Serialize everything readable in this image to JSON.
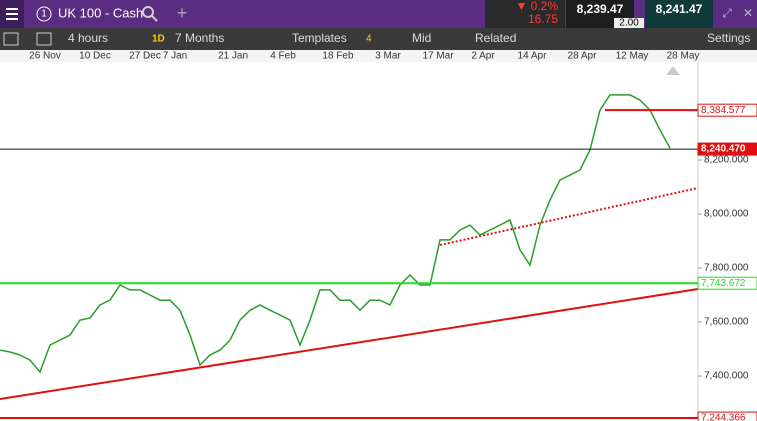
{
  "topbar": {
    "instrument_number": "1",
    "instrument": "UK 100 - Cash",
    "change_pct": "▼ 0.2%",
    "change_pts": "16.75",
    "sell": "8,239.47",
    "spread": "2.00",
    "buy": "8,241.47"
  },
  "toolbar": {
    "interval": "4 hours",
    "interval_badge": "1D",
    "range": "7 Months",
    "templates": "Templates",
    "templates_count": "4",
    "price_type": "Mid",
    "related": "Related",
    "settings": "Settings"
  },
  "chart": {
    "x_labels": [
      "26 Nov",
      "10 Dec",
      "27 Dec",
      "7 Jan",
      "21 Jan",
      "4 Feb",
      "18 Feb",
      "3 Mar",
      "17 Mar",
      "2 Apr",
      "14 Apr",
      "28 Apr",
      "12 May",
      "28 May"
    ],
    "ylim": [
      7252,
      8563
    ],
    "yticks": [
      {
        "value": 8200,
        "label": "8,200.000"
      },
      {
        "value": 8000,
        "label": "8,000.000"
      },
      {
        "value": 7800,
        "label": "7,800.000"
      },
      {
        "value": 7600,
        "label": "7,600.000"
      },
      {
        "value": 7400,
        "label": "7,400.000"
      }
    ],
    "levels": [
      {
        "value": 8384.577,
        "label": "8,384.577",
        "color": "#e01010"
      },
      {
        "value": 8240.47,
        "label": "8,240.470",
        "color": "#111111"
      },
      {
        "value": 7743.672,
        "label": "7,743.672",
        "color": "#22dd22"
      },
      {
        "value": 7244.366,
        "label": "7,244.366",
        "color": "#e01010"
      }
    ],
    "prices": [
      7496,
      7489,
      7478,
      7459,
      7415,
      7515,
      7533,
      7552,
      7607,
      7615,
      7663,
      7681,
      7737,
      7719,
      7719,
      7700,
      7681,
      7681,
      7644,
      7552,
      7441,
      7478,
      7496,
      7533,
      7607,
      7644,
      7663,
      7644,
      7626,
      7607,
      7515,
      7607,
      7719,
      7719,
      7681,
      7681,
      7644,
      7681,
      7681,
      7663,
      7737,
      7774,
      7737,
      7737,
      7904,
      7904,
      7941,
      7959,
      7922,
      7941,
      7959,
      7978,
      7867,
      7811,
      7959,
      8052,
      8126,
      8144,
      8163,
      8237,
      8385,
      8441,
      8441,
      8441,
      8422,
      8385,
      8311,
      8244
    ],
    "line_color": "#2a9d2a"
  }
}
